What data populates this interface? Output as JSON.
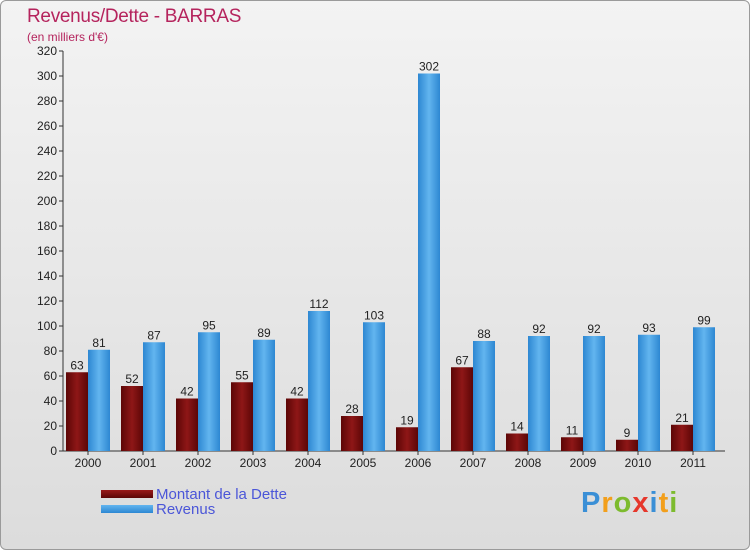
{
  "chart_data": {
    "type": "bar",
    "title": "Revenus/Dette - BARRAS",
    "subtitle": "(en milliers d'€)",
    "categories": [
      "2000",
      "2001",
      "2002",
      "2003",
      "2004",
      "2005",
      "2006",
      "2007",
      "2008",
      "2009",
      "2010",
      "2011"
    ],
    "series": [
      {
        "name": "Montant de la Dette",
        "color": "#7a0e0e",
        "values": [
          63,
          52,
          42,
          55,
          42,
          28,
          19,
          67,
          14,
          11,
          9,
          21
        ]
      },
      {
        "name": "Revenus",
        "color": "#3b9ae1",
        "values": [
          81,
          87,
          95,
          89,
          112,
          103,
          302,
          88,
          92,
          92,
          93,
          99
        ]
      }
    ],
    "ylim": [
      0,
      320
    ],
    "yticks": [
      0,
      20,
      40,
      60,
      80,
      100,
      120,
      140,
      160,
      180,
      200,
      220,
      240,
      260,
      280,
      300,
      320
    ],
    "grid": false,
    "legend": "bottom-left",
    "xlabel": "",
    "ylabel": ""
  },
  "brand": {
    "letters": [
      {
        "char": "P",
        "color": "#3a8fd6"
      },
      {
        "char": "r",
        "color": "#f29f1c"
      },
      {
        "char": "o",
        "color": "#7dbb2e"
      },
      {
        "char": "x",
        "color": "#e6372c"
      },
      {
        "char": "i",
        "color": "#3a8fd6"
      },
      {
        "char": "t",
        "color": "#f29f1c"
      },
      {
        "char": "i",
        "color": "#7dbb2e"
      }
    ]
  }
}
